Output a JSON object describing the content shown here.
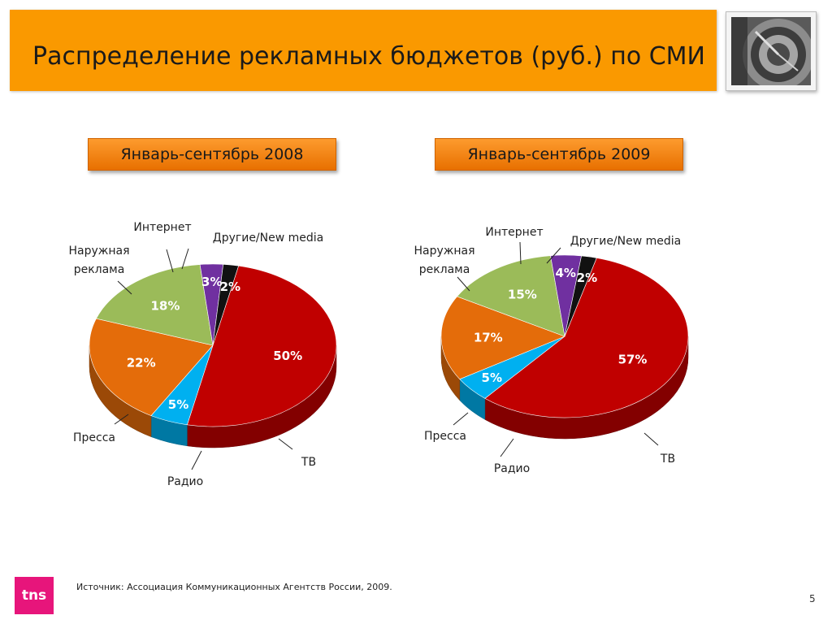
{
  "title": "Распределение рекламных бюджетов (руб.) по СМИ",
  "periods": [
    "Январь-сентябрь 2008",
    "Январь-сентябрь 2009"
  ],
  "source": "Источник:  Ассоциация Коммуникационных Агентств России, 2009.",
  "page_number": "5",
  "logo_text": "tns",
  "colors": {
    "header": "#fa9900",
    "ТВ": "#c00000",
    "Радио": "#00b0f0",
    "Пресса": "#e46c0a",
    "Наружная реклама": "#9bbb59",
    "Интернет": "#7030a0",
    "Другие/New media": "#111111"
  },
  "chart_data": [
    {
      "type": "pie",
      "title": "Январь-сентябрь 2008",
      "categories": [
        "ТВ",
        "Радио",
        "Пресса",
        "Наружная реклама",
        "Интернет",
        "Другие/New media"
      ],
      "values": [
        50,
        5,
        22,
        18,
        3,
        2
      ],
      "data_labels": [
        "50%",
        "5%",
        "22%",
        "18%",
        "3%",
        "2%"
      ],
      "category_labels": [
        "ТВ",
        "Радио",
        "Пресса",
        "Наружная\nреклама",
        "Интернет",
        "Другие/New media"
      ]
    },
    {
      "type": "pie",
      "title": "Январь-сентябрь 2009",
      "categories": [
        "ТВ",
        "Радио",
        "Пресса",
        "Наружная реклама",
        "Интернет",
        "Другие/New media"
      ],
      "values": [
        57,
        5,
        17,
        15,
        4,
        2
      ],
      "data_labels": [
        "57%",
        "5%",
        "17%",
        "15%",
        "4%",
        "2%"
      ],
      "category_labels": [
        "ТВ",
        "Радио",
        "Пресса",
        "Наружная\nреклама",
        "Интернет",
        "Другие/New media"
      ]
    }
  ]
}
